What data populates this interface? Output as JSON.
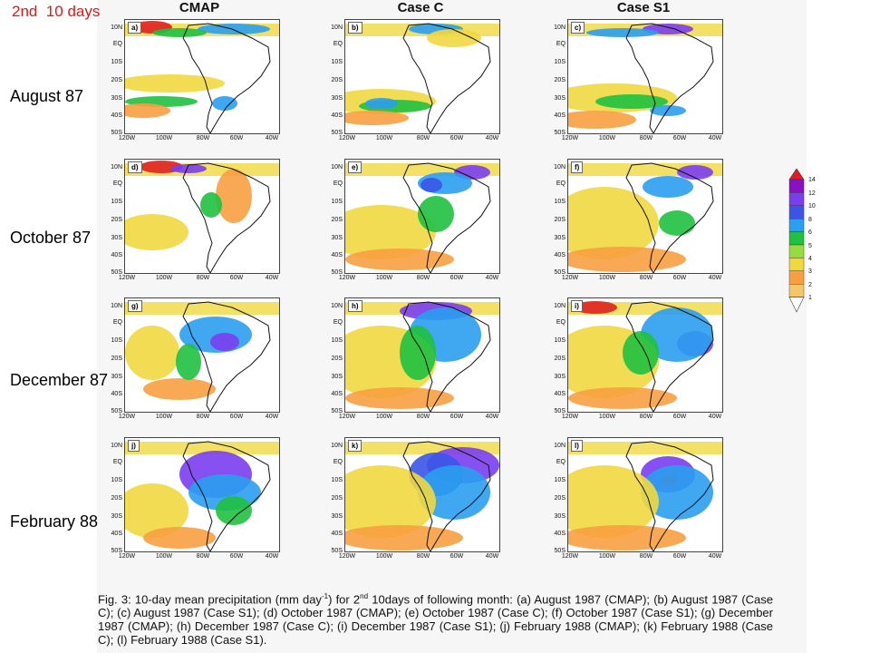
{
  "header": {
    "period_label": "2nd  10 days"
  },
  "columns": [
    "CMAP",
    "Case C",
    "Case S1"
  ],
  "rows": [
    {
      "label": "August 87",
      "panels": [
        "a)",
        "b)",
        "c)"
      ]
    },
    {
      "label": "October 87",
      "panels": [
        "d)",
        "e)",
        "f)"
      ]
    },
    {
      "label": "December 87",
      "panels": [
        "g)",
        "h)",
        "i)"
      ]
    },
    {
      "label": "February 88",
      "panels": [
        "j)",
        "k)",
        "l)"
      ]
    }
  ],
  "axes": {
    "lat_ticks": [
      "10N",
      "EQ",
      "10S",
      "20S",
      "30S",
      "40S",
      "50S"
    ],
    "lon_ticks": [
      "120W",
      "100W",
      "80W",
      "60W",
      "40W"
    ]
  },
  "colorbar": {
    "levels": [
      "14",
      "12",
      "10",
      "8",
      "6",
      "5",
      "4",
      "3",
      "2",
      "1"
    ],
    "colors": [
      "#e02020",
      "#8a10c8",
      "#7a3ef0",
      "#3a55e6",
      "#2a9ef0",
      "#20c040",
      "#96dc40",
      "#f0d840",
      "#f8a040",
      "#ffffff"
    ]
  },
  "caption": {
    "text_a": "Fig. 3: 10-day mean precipitation (mm day",
    "sup_a": "-1",
    "text_b": ") for 2",
    "sup_b": "nd",
    "text_c": " 10days of following month: (a) August 1987 (CMAP); (b) August 1987 (Case C); (c) August 1987 (Case S1); (d) October 1987 (CMAP); (e) October 1987 (Case C); (f) October 1987 (Case S1); (g) December 1987 (CMAP); (h) December 1987 (Case C); (i) December 1987 (Case S1); (j) February 1988 (CMAP); (k) February 1988 (Case C); (l) February 1988 (Case S1)."
  }
}
